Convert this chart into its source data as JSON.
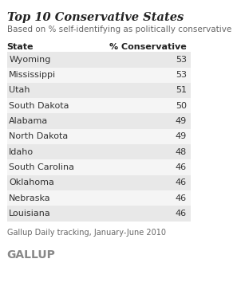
{
  "title": "Top 10 Conservative States",
  "subtitle": "Based on % self-identifying as politically conservative",
  "col_header_state": "State",
  "col_header_pct": "% Conservative",
  "states": [
    "Wyoming",
    "Mississippi",
    "Utah",
    "South Dakota",
    "Alabama",
    "North Dakota",
    "Idaho",
    "South Carolina",
    "Oklahoma",
    "Nebraska",
    "Louisiana"
  ],
  "values": [
    53,
    53,
    51,
    50,
    49,
    49,
    48,
    46,
    46,
    46,
    46
  ],
  "footer": "Gallup Daily tracking, January-June 2010",
  "brand": "GALLUP",
  "bg_color": "#ffffff",
  "row_shaded_color": "#e8e8e8",
  "row_unshaded_color": "#f5f5f5",
  "text_color": "#333333",
  "header_color": "#222222",
  "title_color": "#222222",
  "subtitle_color": "#666666",
  "footer_color": "#666666",
  "brand_color": "#888888"
}
